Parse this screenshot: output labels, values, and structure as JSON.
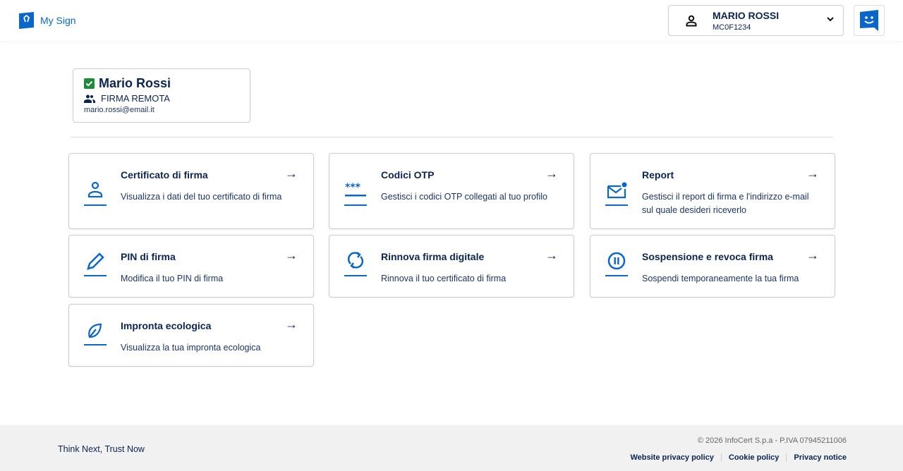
{
  "header": {
    "app_name": "My Sign",
    "user_name": "MARIO ROSSI",
    "user_code": "MC0F1234"
  },
  "profile": {
    "name": "Mario Rossi",
    "type": "FIRMA REMOTA",
    "email": "mario.rossi@email.it"
  },
  "cards": [
    {
      "title": "Certificato di firma",
      "description": "Visualizza i dati del tuo certificato di firma",
      "icon": "person-icon"
    },
    {
      "title": "Codici OTP",
      "description": "Gestisci i codici OTP collegati al tuo profilo",
      "icon": "password-icon"
    },
    {
      "title": "Report",
      "description": "Gestisci il report di firma e l'indirizzo e-mail sul quale desideri riceverlo",
      "icon": "mail-notification-icon"
    },
    {
      "title": "PIN di firma",
      "description": "Modifica il tuo PIN di firma",
      "icon": "pencil-icon"
    },
    {
      "title": "Rinnova firma digitale",
      "description": "Rinnova il tuo certificato di firma",
      "icon": "renew-icon"
    },
    {
      "title": "Sospensione e revoca firma",
      "description": "Sospendi temporaneamente la tua firma",
      "icon": "pause-icon"
    },
    {
      "title": "Impronta ecologica",
      "description": "Visualizza la tua impronta ecologica",
      "icon": "leaf-icon"
    }
  ],
  "footer": {
    "tagline": "Think Next, Trust Now",
    "copyright": "© 2026 InfoCert S.p.a - P.IVA 07945211006",
    "links": [
      "Website privacy policy",
      "Cookie policy",
      "Privacy notice"
    ]
  },
  "colors": {
    "accent": "#0a66c8",
    "text": "#0b2450",
    "success": "#1e8a3c"
  }
}
